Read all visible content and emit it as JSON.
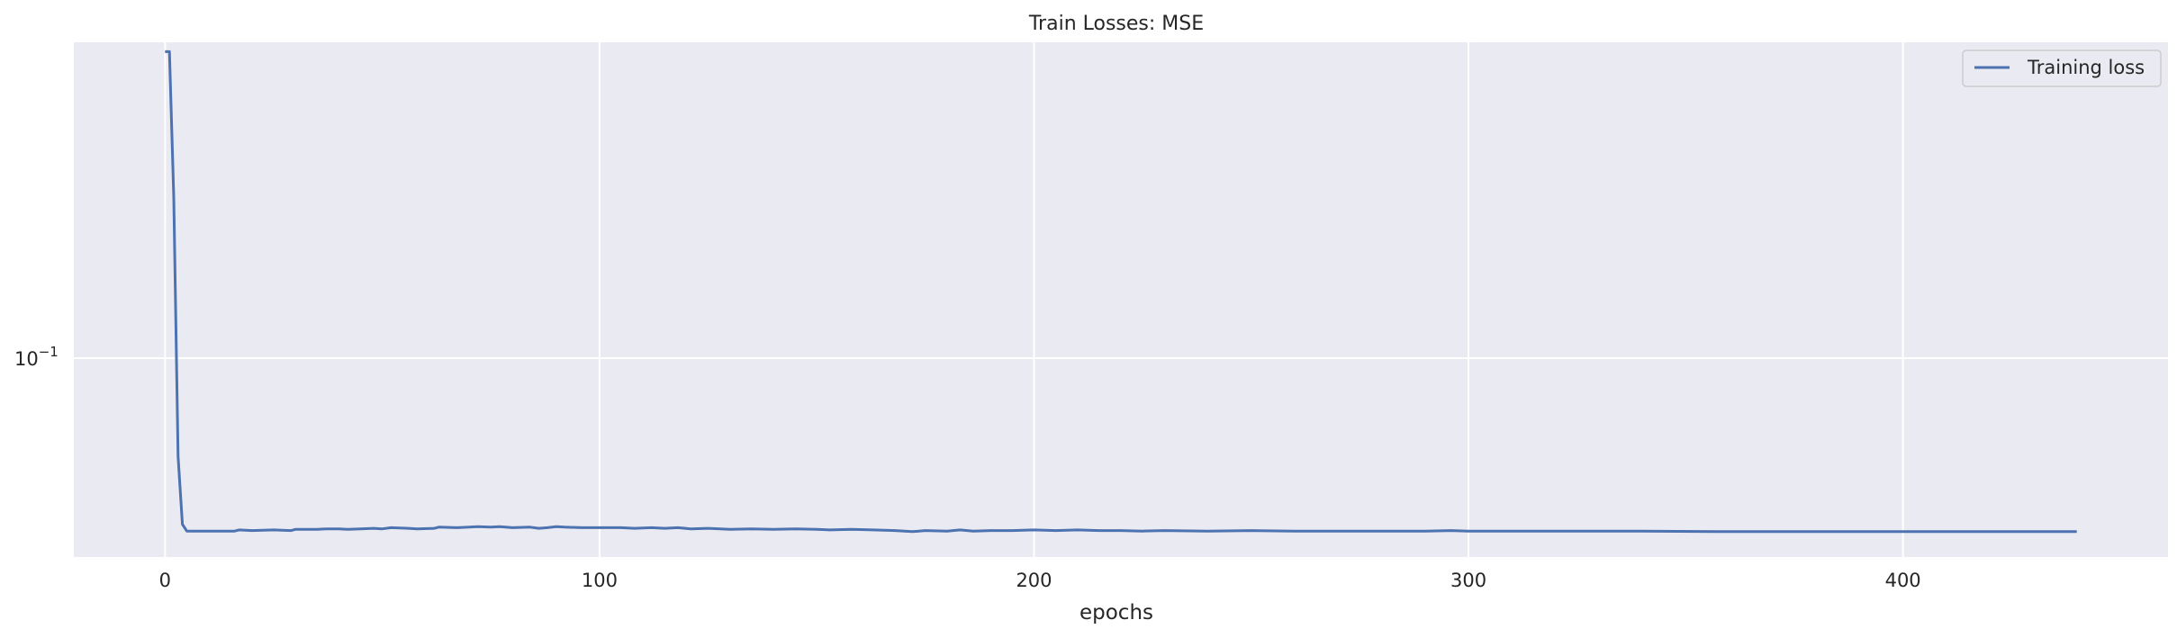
{
  "chart_data": {
    "type": "line",
    "title": "Train Losses:  MSE",
    "xlabel": "epochs",
    "ylabel": "",
    "yscale": "log",
    "grid": true,
    "legend_placement": "top-right",
    "x_ticks": [
      0,
      100,
      200,
      300,
      400
    ],
    "y_ticks": [
      {
        "value": 0.1,
        "base": "10",
        "exponent": "−1"
      }
    ],
    "xlim": [
      -21,
      461
    ],
    "ylim": [
      0.0559,
      0.2518
    ],
    "colors": {
      "background": "#eaeaf2",
      "grid": "#ffffff",
      "series": "#4c72b0"
    },
    "series": [
      {
        "name": "Training loss",
        "points": [
          [
            0,
            0.245
          ],
          [
            1,
            0.245
          ],
          [
            2,
            0.16
          ],
          [
            3,
            0.075
          ],
          [
            4,
            0.0615
          ],
          [
            5,
            0.0603
          ],
          [
            8,
            0.0603
          ],
          [
            12,
            0.0603
          ],
          [
            16,
            0.0603
          ],
          [
            17,
            0.0605
          ],
          [
            20,
            0.0604
          ],
          [
            25,
            0.0605
          ],
          [
            29,
            0.0604
          ],
          [
            30,
            0.0606
          ],
          [
            35,
            0.0606
          ],
          [
            37,
            0.0607
          ],
          [
            40,
            0.0607
          ],
          [
            42,
            0.0606
          ],
          [
            45,
            0.0607
          ],
          [
            48,
            0.0608
          ],
          [
            50,
            0.0607
          ],
          [
            52,
            0.0609
          ],
          [
            56,
            0.0608
          ],
          [
            58,
            0.0607
          ],
          [
            62,
            0.0608
          ],
          [
            63,
            0.061
          ],
          [
            67,
            0.0609
          ],
          [
            70,
            0.061
          ],
          [
            72,
            0.0611
          ],
          [
            75,
            0.061
          ],
          [
            77,
            0.0611
          ],
          [
            80,
            0.0609
          ],
          [
            84,
            0.061
          ],
          [
            86,
            0.0608
          ],
          [
            88,
            0.0609
          ],
          [
            90,
            0.0611
          ],
          [
            92,
            0.061
          ],
          [
            96,
            0.0609
          ],
          [
            100,
            0.0609
          ],
          [
            105,
            0.0609
          ],
          [
            108,
            0.0608
          ],
          [
            112,
            0.0609
          ],
          [
            115,
            0.0608
          ],
          [
            118,
            0.0609
          ],
          [
            121,
            0.0607
          ],
          [
            125,
            0.0608
          ],
          [
            130,
            0.0606
          ],
          [
            135,
            0.0607
          ],
          [
            140,
            0.0606
          ],
          [
            145,
            0.0607
          ],
          [
            150,
            0.0606
          ],
          [
            153,
            0.0605
          ],
          [
            158,
            0.0606
          ],
          [
            163,
            0.0605
          ],
          [
            168,
            0.0604
          ],
          [
            172,
            0.0602
          ],
          [
            175,
            0.0604
          ],
          [
            180,
            0.0603
          ],
          [
            183,
            0.0605
          ],
          [
            186,
            0.0603
          ],
          [
            190,
            0.0604
          ],
          [
            195,
            0.0604
          ],
          [
            200,
            0.0605
          ],
          [
            205,
            0.0604
          ],
          [
            210,
            0.0605
          ],
          [
            215,
            0.0604
          ],
          [
            220,
            0.0604
          ],
          [
            225,
            0.0603
          ],
          [
            230,
            0.0604
          ],
          [
            240,
            0.0603
          ],
          [
            250,
            0.0604
          ],
          [
            260,
            0.0603
          ],
          [
            270,
            0.0603
          ],
          [
            280,
            0.0603
          ],
          [
            290,
            0.0603
          ],
          [
            296,
            0.0604
          ],
          [
            300,
            0.0603
          ],
          [
            320,
            0.0603
          ],
          [
            340,
            0.0603
          ],
          [
            360,
            0.0602
          ],
          [
            380,
            0.0602
          ],
          [
            400,
            0.0602
          ],
          [
            420,
            0.0602
          ],
          [
            440,
            0.0602
          ]
        ]
      }
    ]
  }
}
